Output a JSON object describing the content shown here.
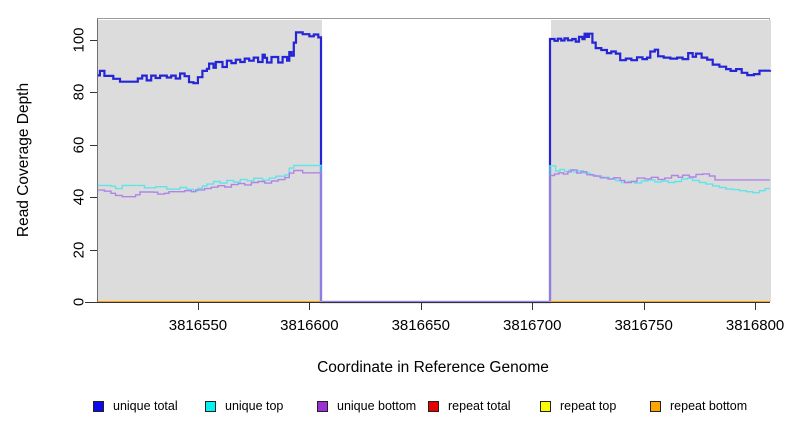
{
  "figure_colors": {
    "plot_background": "#ffffff",
    "region_fill": "#dcdcdc",
    "axis_color": "#333333"
  },
  "legend": [
    {
      "label": "unique total",
      "swatch_color": "#0b0bee"
    },
    {
      "label": "unique top",
      "swatch_color": "#00f2f2"
    },
    {
      "label": "unique bottom",
      "swatch_color": "#9c2fd6"
    },
    {
      "label": "repeat total",
      "swatch_color": "#e60000"
    },
    {
      "label": "repeat top",
      "swatch_color": "#fcfc00"
    },
    {
      "label": "repeat bottom",
      "swatch_color": "#ffa500"
    }
  ],
  "chart_data": {
    "type": "line",
    "subtype": "step",
    "title": "",
    "xlabel": "Coordinate in Reference Genome",
    "ylabel": "Read Coverage Depth",
    "xlim": [
      3816504.7,
      3816806.7
    ],
    "ylim": [
      0,
      108.4
    ],
    "x_ticks": [
      3816550,
      3816600,
      3816650,
      3816700,
      3816750,
      3816800
    ],
    "y_ticks": [
      0,
      20,
      40,
      60,
      80,
      100
    ],
    "grid": "off",
    "legend_position": "bottom",
    "shaded_regions": [
      {
        "name": "left-coverage-region",
        "x0": 3816504.7,
        "x1": 3816605.2
      },
      {
        "name": "right-coverage-region",
        "x0": 3816708.0,
        "x1": 3816806.7
      }
    ],
    "gap_region": {
      "x0": 3816605.2,
      "x1": 3816708.0
    },
    "series": [
      {
        "name": "unique total",
        "color": "#2525d6",
        "width": 2.2,
        "segments": [
          [
            [
              3816505,
              86.5
            ],
            [
              3816506,
              88.2
            ],
            [
              3816508,
              86.3
            ],
            [
              3816512,
              85.2
            ],
            [
              3816515,
              84.1
            ],
            [
              3816521,
              84.1
            ],
            [
              3816523,
              85.3
            ],
            [
              3816525,
              86.4
            ],
            [
              3816527,
              84.6
            ],
            [
              3816529,
              86.4
            ],
            [
              3816531,
              85.5
            ],
            [
              3816533,
              86.4
            ],
            [
              3816536,
              85.7
            ],
            [
              3816538,
              86.4
            ],
            [
              3816540,
              85.3
            ],
            [
              3816542,
              87.2
            ],
            [
              3816544,
              86.2
            ],
            [
              3816546,
              83.9
            ],
            [
              3816548,
              83.5
            ],
            [
              3816550,
              85.8
            ],
            [
              3816552,
              88.2
            ],
            [
              3816554,
              89.0
            ],
            [
              3816555,
              91.0
            ],
            [
              3816557,
              89.4
            ],
            [
              3816558,
              91.6
            ],
            [
              3816561,
              89.7
            ],
            [
              3816563,
              92.1
            ],
            [
              3816565,
              91.2
            ],
            [
              3816567,
              92.5
            ],
            [
              3816569,
              91.6
            ],
            [
              3816571,
              92.9
            ],
            [
              3816573,
              92.1
            ],
            [
              3816575,
              93.3
            ],
            [
              3816577,
              91.6
            ],
            [
              3816579,
              94.4
            ],
            [
              3816580,
              93.2
            ],
            [
              3816581,
              91.4
            ],
            [
              3816583,
              93.5
            ],
            [
              3816586,
              91.4
            ],
            [
              3816588,
              93.5
            ],
            [
              3816590,
              92.1
            ],
            [
              3816591,
              95.4
            ],
            [
              3816592,
              94.0
            ],
            [
              3816593,
              99.0
            ],
            [
              3816594,
              102.9
            ],
            [
              3816597,
              102.2
            ],
            [
              3816600,
              101.4
            ],
            [
              3816602,
              102.1
            ],
            [
              3816604,
              101.0
            ],
            [
              3816605.2,
              0
            ],
            [
              3816708,
              100.4
            ],
            [
              3816710,
              99.7
            ],
            [
              3816711.5,
              100.5
            ],
            [
              3816713,
              99.8
            ],
            [
              3816714.5,
              100.6
            ],
            [
              3816716,
              99.9
            ],
            [
              3816718,
              100.4
            ],
            [
              3816719.5,
              99.4
            ],
            [
              3816721,
              101.2
            ],
            [
              3816722.5,
              100.3
            ],
            [
              3816723.5,
              102.4
            ],
            [
              3816724.5,
              101.2
            ],
            [
              3816725.5,
              102.4
            ],
            [
              3816727,
              99.0
            ],
            [
              3816728.5,
              96.9
            ],
            [
              3816731,
              96.2
            ],
            [
              3816733.5,
              95.0
            ],
            [
              3816735.5,
              95.6
            ],
            [
              3816737.5,
              94.8
            ],
            [
              3816739.5,
              92.3
            ],
            [
              3816742,
              92.9
            ],
            [
              3816744.5,
              92.3
            ],
            [
              3816747,
              93.4
            ],
            [
              3816749.5,
              92.7
            ],
            [
              3816751.5,
              93.3
            ],
            [
              3816753,
              95.6
            ],
            [
              3816755,
              96.3
            ],
            [
              3816756.5,
              93.8
            ],
            [
              3816759,
              93.3
            ],
            [
              3816762,
              92.9
            ],
            [
              3816765,
              93.3
            ],
            [
              3816767.5,
              92.7
            ],
            [
              3816770,
              95.0
            ],
            [
              3816772,
              93.6
            ],
            [
              3816773.5,
              94.8
            ],
            [
              3816776,
              93.3
            ],
            [
              3816778.5,
              92.5
            ],
            [
              3816781,
              90.6
            ],
            [
              3816784,
              89.8
            ],
            [
              3816787,
              88.9
            ],
            [
              3816789,
              88.2
            ],
            [
              3816791.5,
              88.9
            ],
            [
              3816794,
              87.5
            ],
            [
              3816796.5,
              86.6
            ],
            [
              3816799.5,
              87.0
            ],
            [
              3816802,
              88.3
            ],
            [
              3816806.7,
              88.5
            ]
          ]
        ]
      },
      {
        "name": "unique top",
        "color": "#63e3e8",
        "width": 1.4,
        "segments": [
          [
            [
              3816505,
              44.5
            ],
            [
              3816511,
              44.2
            ],
            [
              3816513,
              43.3
            ],
            [
              3816516,
              44.5
            ],
            [
              3816526,
              43.6
            ],
            [
              3816531,
              44.0
            ],
            [
              3816536,
              43.1
            ],
            [
              3816542,
              43.7
            ],
            [
              3816545,
              43.0
            ],
            [
              3816548,
              42.4
            ],
            [
              3816550,
              43.4
            ],
            [
              3816552,
              44.3
            ],
            [
              3816554,
              45.0
            ],
            [
              3816557,
              46.0
            ],
            [
              3816560,
              45.4
            ],
            [
              3816563,
              46.4
            ],
            [
              3816566,
              45.8
            ],
            [
              3816569,
              46.8
            ],
            [
              3816572,
              46.3
            ],
            [
              3816575,
              47.2
            ],
            [
              3816579,
              46.5
            ],
            [
              3816582,
              47.3
            ],
            [
              3816585,
              48.0
            ],
            [
              3816589,
              48.5
            ],
            [
              3816591,
              51.1
            ],
            [
              3816593,
              52.1
            ],
            [
              3816605.2,
              0
            ],
            [
              3816708,
              52.0
            ],
            [
              3816710.5,
              50.0
            ],
            [
              3816712.5,
              50.6
            ],
            [
              3816714.5,
              49.8
            ],
            [
              3816716.5,
              50.4
            ],
            [
              3816718.5,
              49.6
            ],
            [
              3816720.5,
              50.1
            ],
            [
              3816723,
              49.2
            ],
            [
              3816726,
              48.4
            ],
            [
              3816728.5,
              48.0
            ],
            [
              3816731.5,
              47.6
            ],
            [
              3816734.5,
              46.9
            ],
            [
              3816737.5,
              46.3
            ],
            [
              3816740,
              45.6
            ],
            [
              3816743,
              46.0
            ],
            [
              3816746,
              45.4
            ],
            [
              3816749,
              46.2
            ],
            [
              3816752,
              46.6
            ],
            [
              3816755,
              45.8
            ],
            [
              3816758,
              46.2
            ],
            [
              3816761,
              45.6
            ],
            [
              3816764,
              46.0
            ],
            [
              3816767,
              46.9
            ],
            [
              3816769.5,
              47.2
            ],
            [
              3816772,
              46.4
            ],
            [
              3816775,
              45.6
            ],
            [
              3816778,
              45.0
            ],
            [
              3816781,
              44.3
            ],
            [
              3816784,
              43.7
            ],
            [
              3816787,
              43.1
            ],
            [
              3816790,
              42.9
            ],
            [
              3816793,
              42.5
            ],
            [
              3816796,
              42.1
            ],
            [
              3816799,
              41.7
            ],
            [
              3816802,
              42.5
            ],
            [
              3816804.5,
              43.3
            ],
            [
              3816806.7,
              43.3
            ]
          ]
        ]
      },
      {
        "name": "unique bottom",
        "color": "#b183e6",
        "width": 1.4,
        "segments": [
          [
            [
              3816505,
              42.7
            ],
            [
              3816508,
              42.3
            ],
            [
              3816511,
              41.5
            ],
            [
              3816513,
              40.7
            ],
            [
              3816516,
              40.2
            ],
            [
              3816522,
              40.9
            ],
            [
              3816524,
              42.0
            ],
            [
              3816530,
              41.9
            ],
            [
              3816532,
              41.2
            ],
            [
              3816535,
              41.5
            ],
            [
              3816537,
              42.1
            ],
            [
              3816544,
              42.5
            ],
            [
              3816547,
              42.1
            ],
            [
              3816549,
              42.8
            ],
            [
              3816553,
              43.3
            ],
            [
              3816556,
              43.8
            ],
            [
              3816559,
              44.4
            ],
            [
              3816562,
              43.9
            ],
            [
              3816565,
              44.8
            ],
            [
              3816568,
              45.2
            ],
            [
              3816571,
              44.7
            ],
            [
              3816574,
              45.6
            ],
            [
              3816577,
              46.0
            ],
            [
              3816580,
              45.4
            ],
            [
              3816583,
              46.2
            ],
            [
              3816586,
              46.7
            ],
            [
              3816589,
              47.5
            ],
            [
              3816591,
              49.2
            ],
            [
              3816593,
              50.2
            ],
            [
              3816597,
              49.3
            ],
            [
              3816605.2,
              0
            ],
            [
              3816708,
              48.3
            ],
            [
              3816710,
              48.9
            ],
            [
              3816712,
              49.3
            ],
            [
              3816714,
              48.8
            ],
            [
              3816716,
              49.7
            ],
            [
              3816717.5,
              50.4
            ],
            [
              3816720,
              49.2
            ],
            [
              3816722,
              49.7
            ],
            [
              3816724.5,
              48.6
            ],
            [
              3816727.5,
              48.1
            ],
            [
              3816730.5,
              47.4
            ],
            [
              3816734,
              47.0
            ],
            [
              3816736.5,
              47.4
            ],
            [
              3816739.5,
              46.4
            ],
            [
              3816741.5,
              45.6
            ],
            [
              3816744.5,
              46.0
            ],
            [
              3816747,
              47.3
            ],
            [
              3816750.5,
              47.0
            ],
            [
              3816753.5,
              47.6
            ],
            [
              3816756.5,
              46.8
            ],
            [
              3816759.5,
              47.3
            ],
            [
              3816762.5,
              48.3
            ],
            [
              3816765.5,
              47.6
            ],
            [
              3816767.5,
              48.4
            ],
            [
              3816770.5,
              47.7
            ],
            [
              3816773.5,
              48.7
            ],
            [
              3816776.5,
              48.9
            ],
            [
              3816779.5,
              48.1
            ],
            [
              3816782,
              46.6
            ],
            [
              3816806.7,
              46.6
            ]
          ]
        ]
      },
      {
        "name": "repeat total",
        "color": "#e60000",
        "width": 2,
        "segments": [
          [
            [
              3816505,
              0
            ],
            [
              3816605.2,
              0
            ]
          ],
          [
            [
              3816708,
              0
            ],
            [
              3816806.7,
              0
            ]
          ]
        ]
      },
      {
        "name": "repeat top",
        "color": "#fcfc00",
        "width": 1.6,
        "segments": [
          [
            [
              3816505,
              0
            ],
            [
              3816605.2,
              0
            ]
          ],
          [
            [
              3816708,
              0
            ],
            [
              3816806.7,
              0
            ]
          ]
        ]
      },
      {
        "name": "repeat bottom",
        "color": "#ffa500",
        "width": 1.8,
        "segments": [
          [
            [
              3816505,
              0
            ],
            [
              3816605.2,
              0
            ]
          ],
          [
            [
              3816708,
              0
            ],
            [
              3816806.7,
              0
            ]
          ]
        ]
      }
    ]
  }
}
